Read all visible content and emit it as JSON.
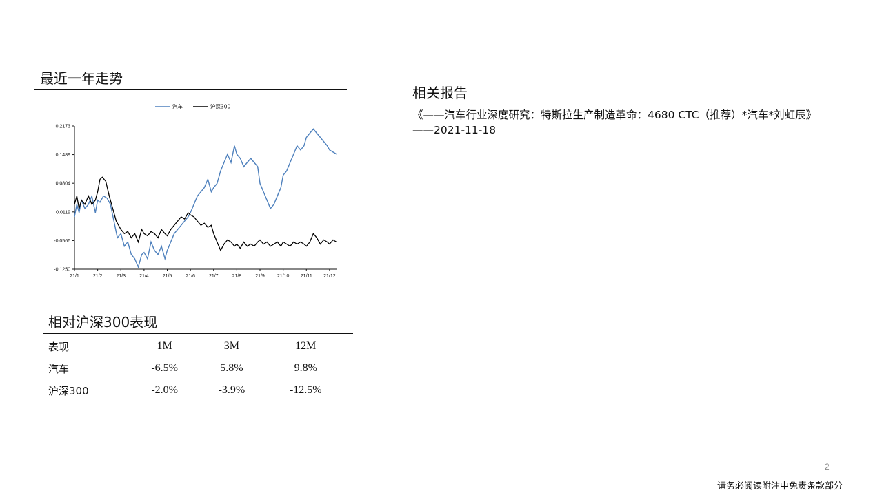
{
  "trend_section": {
    "title": "最近一年走势"
  },
  "chart_data": {
    "type": "line",
    "title": "",
    "xlabel": "",
    "ylabel": "",
    "legend_position": "top-center",
    "ylim": [
      -0.125,
      0.2173
    ],
    "y_ticks": [
      "0.2173",
      "0.1489",
      "0.0804",
      "0.0119",
      "-0.0566",
      "-0.1250"
    ],
    "y_tick_values": [
      0.2173,
      0.1489,
      0.0804,
      0.0119,
      -0.0566,
      -0.125
    ],
    "x_ticks": [
      "21/1",
      "21/2",
      "21/3",
      "21/4",
      "21/5",
      "21/6",
      "21/7",
      "21/8",
      "21/9",
      "21/10",
      "21/11",
      "21/12"
    ],
    "grid": false,
    "series": [
      {
        "name": "汽车",
        "color": "#4f81bd",
        "points": [
          [
            0,
            0
          ],
          [
            0.1,
            0.03
          ],
          [
            0.2,
            0.01
          ],
          [
            0.3,
            0.04
          ],
          [
            0.45,
            0.02
          ],
          [
            0.6,
            0.03
          ],
          [
            0.75,
            0.05
          ],
          [
            0.9,
            0.01
          ],
          [
            1.0,
            0.04
          ],
          [
            1.1,
            0.035
          ],
          [
            1.25,
            0.05
          ],
          [
            1.4,
            0.045
          ],
          [
            1.55,
            0.03
          ],
          [
            1.7,
            -0.01
          ],
          [
            1.85,
            -0.05
          ],
          [
            2.0,
            -0.04
          ],
          [
            2.15,
            -0.07
          ],
          [
            2.3,
            -0.06
          ],
          [
            2.45,
            -0.09
          ],
          [
            2.6,
            -0.1
          ],
          [
            2.75,
            -0.12
          ],
          [
            2.9,
            -0.09
          ],
          [
            3.0,
            -0.085
          ],
          [
            3.15,
            -0.1
          ],
          [
            3.3,
            -0.06
          ],
          [
            3.45,
            -0.08
          ],
          [
            3.6,
            -0.09
          ],
          [
            3.75,
            -0.07
          ],
          [
            3.9,
            -0.1
          ],
          [
            4.0,
            -0.08
          ],
          [
            4.15,
            -0.06
          ],
          [
            4.3,
            -0.04
          ],
          [
            4.45,
            -0.03
          ],
          [
            4.6,
            -0.02
          ],
          [
            4.75,
            -0.01
          ],
          [
            4.9,
            0
          ],
          [
            5.0,
            0.01
          ],
          [
            5.15,
            0.03
          ],
          [
            5.3,
            0.05
          ],
          [
            5.45,
            0.06
          ],
          [
            5.6,
            0.07
          ],
          [
            5.75,
            0.09
          ],
          [
            5.9,
            0.06
          ],
          [
            6.0,
            0.07
          ],
          [
            6.15,
            0.08
          ],
          [
            6.3,
            0.11
          ],
          [
            6.45,
            0.13
          ],
          [
            6.6,
            0.15
          ],
          [
            6.75,
            0.13
          ],
          [
            6.9,
            0.17
          ],
          [
            7.0,
            0.15
          ],
          [
            7.15,
            0.14
          ],
          [
            7.3,
            0.12
          ],
          [
            7.45,
            0.13
          ],
          [
            7.6,
            0.14
          ],
          [
            7.75,
            0.13
          ],
          [
            7.9,
            0.12
          ],
          [
            8.0,
            0.08
          ],
          [
            8.15,
            0.06
          ],
          [
            8.3,
            0.04
          ],
          [
            8.45,
            0.02
          ],
          [
            8.6,
            0.03
          ],
          [
            8.75,
            0.05
          ],
          [
            8.9,
            0.07
          ],
          [
            9.0,
            0.1
          ],
          [
            9.15,
            0.11
          ],
          [
            9.3,
            0.13
          ],
          [
            9.45,
            0.15
          ],
          [
            9.6,
            0.17
          ],
          [
            9.75,
            0.16
          ],
          [
            9.9,
            0.17
          ],
          [
            10.0,
            0.19
          ],
          [
            10.15,
            0.2
          ],
          [
            10.3,
            0.21
          ],
          [
            10.45,
            0.2
          ],
          [
            10.6,
            0.19
          ],
          [
            10.75,
            0.18
          ],
          [
            10.9,
            0.17
          ],
          [
            11.0,
            0.16
          ],
          [
            11.15,
            0.155
          ],
          [
            11.3,
            0.15
          ]
        ]
      },
      {
        "name": "沪深300",
        "color": "#000000",
        "points": [
          [
            0,
            0.03
          ],
          [
            0.1,
            0.05
          ],
          [
            0.2,
            0.02
          ],
          [
            0.3,
            0.04
          ],
          [
            0.45,
            0.03
          ],
          [
            0.6,
            0.05
          ],
          [
            0.75,
            0.03
          ],
          [
            0.9,
            0.04
          ],
          [
            1.0,
            0.06
          ],
          [
            1.1,
            0.09
          ],
          [
            1.2,
            0.095
          ],
          [
            1.35,
            0.085
          ],
          [
            1.5,
            0.05
          ],
          [
            1.65,
            0.02
          ],
          [
            1.8,
            -0.01
          ],
          [
            2.0,
            -0.03
          ],
          [
            2.15,
            -0.04
          ],
          [
            2.3,
            -0.035
          ],
          [
            2.45,
            -0.05
          ],
          [
            2.6,
            -0.04
          ],
          [
            2.75,
            -0.06
          ],
          [
            2.9,
            -0.03
          ],
          [
            3.0,
            -0.04
          ],
          [
            3.15,
            -0.045
          ],
          [
            3.3,
            -0.035
          ],
          [
            3.45,
            -0.04
          ],
          [
            3.6,
            -0.05
          ],
          [
            3.75,
            -0.03
          ],
          [
            3.9,
            -0.04
          ],
          [
            4.0,
            -0.045
          ],
          [
            4.15,
            -0.03
          ],
          [
            4.3,
            -0.02
          ],
          [
            4.45,
            -0.01
          ],
          [
            4.6,
            0.0
          ],
          [
            4.75,
            -0.005
          ],
          [
            4.9,
            0.01
          ],
          [
            5.0,
            0.005
          ],
          [
            5.15,
            0.0
          ],
          [
            5.3,
            -0.01
          ],
          [
            5.45,
            -0.02
          ],
          [
            5.6,
            -0.015
          ],
          [
            5.75,
            -0.025
          ],
          [
            5.9,
            -0.02
          ],
          [
            6.0,
            -0.04
          ],
          [
            6.15,
            -0.06
          ],
          [
            6.3,
            -0.08
          ],
          [
            6.45,
            -0.065
          ],
          [
            6.6,
            -0.055
          ],
          [
            6.75,
            -0.06
          ],
          [
            6.9,
            -0.07
          ],
          [
            7.0,
            -0.065
          ],
          [
            7.15,
            -0.075
          ],
          [
            7.3,
            -0.06
          ],
          [
            7.45,
            -0.07
          ],
          [
            7.6,
            -0.065
          ],
          [
            7.75,
            -0.07
          ],
          [
            7.9,
            -0.06
          ],
          [
            8.0,
            -0.055
          ],
          [
            8.15,
            -0.065
          ],
          [
            8.3,
            -0.06
          ],
          [
            8.45,
            -0.07
          ],
          [
            8.6,
            -0.065
          ],
          [
            8.75,
            -0.06
          ],
          [
            8.9,
            -0.07
          ],
          [
            9.0,
            -0.06
          ],
          [
            9.15,
            -0.065
          ],
          [
            9.3,
            -0.07
          ],
          [
            9.45,
            -0.06
          ],
          [
            9.6,
            -0.065
          ],
          [
            9.75,
            -0.06
          ],
          [
            9.9,
            -0.065
          ],
          [
            10.0,
            -0.07
          ],
          [
            10.15,
            -0.06
          ],
          [
            10.3,
            -0.04
          ],
          [
            10.45,
            -0.05
          ],
          [
            10.6,
            -0.065
          ],
          [
            10.75,
            -0.055
          ],
          [
            10.9,
            -0.06
          ],
          [
            11.0,
            -0.065
          ],
          [
            11.15,
            -0.055
          ],
          [
            11.3,
            -0.06
          ]
        ]
      }
    ]
  },
  "relative_section": {
    "title": "相对沪深300表现",
    "headers": [
      "表现",
      "1M",
      "3M",
      "12M"
    ],
    "rows": [
      [
        "汽车",
        "-6.5%",
        "5.8%",
        "9.8%"
      ],
      [
        "沪深300",
        "-2.0%",
        "-3.9%",
        "-12.5%"
      ]
    ]
  },
  "reports_section": {
    "title": "相关报告",
    "items": [
      "《——汽车行业深度研究：特斯拉生产制造革命：4680 CTC（推荐）*汽车*刘虹辰》——2021-11-18"
    ]
  },
  "footer": {
    "page_number": "2",
    "disclaimer": "请务必阅读附注中免责条款部分"
  }
}
